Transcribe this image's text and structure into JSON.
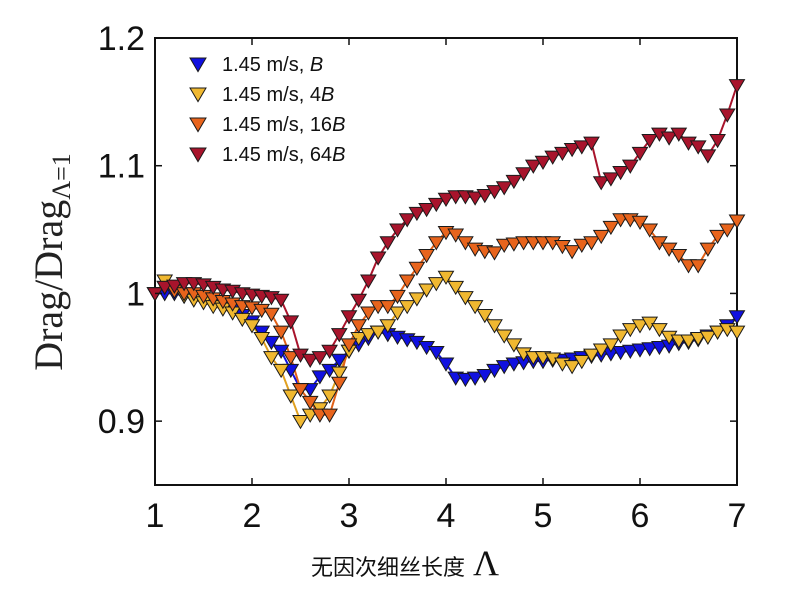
{
  "chart_data": {
    "type": "line",
    "xlabel_text": "无因次细丝长度",
    "xlabel_symbol": "Λ",
    "ylabel_main": "Drag/Drag",
    "ylabel_sub": "Λ=1",
    "xlim": [
      1,
      7
    ],
    "ylim": [
      0.85,
      1.2
    ],
    "x_ticks": [
      "1",
      "2",
      "3",
      "4",
      "5",
      "6",
      "7"
    ],
    "y_ticks": [
      "0.9",
      "1",
      "1.1",
      "1.2"
    ],
    "grid": false,
    "legend_position": "top-left",
    "series": [
      {
        "name": "1.45 m/s, B",
        "name_plain": "1.45 m/s, ",
        "name_italic": "B",
        "color": "#1010e0",
        "line_color": "#1010e0",
        "x": [
          1.0,
          1.1,
          1.2,
          1.3,
          1.4,
          1.5,
          1.6,
          1.7,
          1.8,
          1.9,
          2.0,
          2.1,
          2.2,
          2.3,
          2.4,
          2.5,
          2.6,
          2.7,
          2.8,
          2.9,
          3.0,
          3.1,
          3.2,
          3.3,
          3.4,
          3.5,
          3.6,
          3.7,
          3.8,
          3.9,
          4.0,
          4.1,
          4.2,
          4.3,
          4.4,
          4.5,
          4.6,
          4.7,
          4.8,
          4.9,
          5.0,
          5.1,
          5.2,
          5.3,
          5.4,
          5.5,
          5.6,
          5.7,
          5.8,
          5.9,
          6.0,
          6.1,
          6.2,
          6.3,
          6.4,
          6.5,
          6.6,
          6.7,
          6.8,
          6.9,
          7.0
        ],
        "values": [
          1.0,
          1.0,
          1.0,
          0.998,
          0.996,
          0.994,
          0.992,
          0.99,
          0.987,
          0.983,
          0.978,
          0.97,
          0.962,
          0.955,
          0.94,
          0.925,
          0.925,
          0.935,
          0.94,
          0.948,
          0.955,
          0.96,
          0.965,
          0.97,
          0.968,
          0.966,
          0.964,
          0.962,
          0.958,
          0.954,
          0.945,
          0.934,
          0.933,
          0.934,
          0.936,
          0.94,
          0.943,
          0.945,
          0.946,
          0.947,
          0.947,
          0.948,
          0.948,
          0.949,
          0.95,
          0.951,
          0.952,
          0.953,
          0.954,
          0.955,
          0.956,
          0.957,
          0.958,
          0.959,
          0.961,
          0.962,
          0.964,
          0.967,
          0.97,
          0.975,
          0.982
        ]
      },
      {
        "name": "1.45 m/s, 4B",
        "name_plain": "1.45 m/s, 4",
        "name_italic": "B",
        "color": "#f0b830",
        "line_color": "#e0a020",
        "x": [
          1.0,
          1.1,
          1.2,
          1.3,
          1.4,
          1.5,
          1.6,
          1.7,
          1.8,
          1.9,
          2.0,
          2.1,
          2.2,
          2.3,
          2.4,
          2.5,
          2.6,
          2.7,
          2.8,
          2.9,
          3.0,
          3.1,
          3.2,
          3.3,
          3.4,
          3.5,
          3.6,
          3.7,
          3.8,
          3.9,
          4.0,
          4.1,
          4.2,
          4.3,
          4.4,
          4.5,
          4.6,
          4.7,
          4.8,
          4.9,
          5.0,
          5.1,
          5.2,
          5.3,
          5.4,
          5.5,
          5.6,
          5.7,
          5.8,
          5.9,
          6.0,
          6.1,
          6.2,
          6.3,
          6.4,
          6.5,
          6.6,
          6.7,
          6.8,
          6.9,
          7.0
        ],
        "values": [
          1.0,
          1.01,
          1.005,
          0.998,
          0.995,
          0.993,
          0.99,
          0.988,
          0.985,
          0.98,
          0.975,
          0.965,
          0.95,
          0.94,
          0.92,
          0.9,
          0.905,
          0.91,
          0.92,
          0.938,
          0.955,
          0.965,
          0.968,
          0.97,
          0.975,
          0.985,
          0.99,
          0.996,
          1.003,
          1.008,
          1.013,
          1.005,
          0.997,
          0.99,
          0.983,
          0.975,
          0.967,
          0.96,
          0.953,
          0.95,
          0.95,
          0.949,
          0.945,
          0.943,
          0.947,
          0.952,
          0.956,
          0.96,
          0.967,
          0.972,
          0.975,
          0.977,
          0.972,
          0.966,
          0.963,
          0.963,
          0.965,
          0.966,
          0.97,
          0.972,
          0.97
        ]
      },
      {
        "name": "1.45 m/s, 16B",
        "name_plain": "1.45 m/s, 16",
        "name_italic": "B",
        "color": "#e8641c",
        "line_color": "#e06018",
        "x": [
          1.0,
          1.1,
          1.2,
          1.3,
          1.4,
          1.5,
          1.6,
          1.7,
          1.8,
          1.9,
          2.0,
          2.1,
          2.2,
          2.3,
          2.4,
          2.5,
          2.6,
          2.7,
          2.8,
          2.9,
          3.0,
          3.1,
          3.2,
          3.3,
          3.4,
          3.5,
          3.6,
          3.7,
          3.8,
          3.9,
          4.0,
          4.1,
          4.2,
          4.3,
          4.4,
          4.5,
          4.6,
          4.7,
          4.8,
          4.9,
          5.0,
          5.1,
          5.2,
          5.3,
          5.4,
          5.5,
          5.6,
          5.7,
          5.8,
          5.9,
          6.0,
          6.1,
          6.2,
          6.3,
          6.4,
          6.5,
          6.6,
          6.7,
          6.8,
          6.9,
          7.0
        ],
        "values": [
          1.0,
          1.005,
          1.002,
          1.0,
          1.0,
          0.998,
          0.996,
          0.994,
          0.992,
          0.99,
          0.989,
          0.987,
          0.984,
          0.97,
          0.95,
          0.925,
          0.915,
          0.905,
          0.905,
          0.93,
          0.96,
          0.975,
          0.985,
          0.99,
          0.99,
          0.998,
          1.01,
          1.02,
          1.03,
          1.04,
          1.048,
          1.046,
          1.04,
          1.035,
          1.033,
          1.032,
          1.038,
          1.039,
          1.04,
          1.04,
          1.04,
          1.04,
          1.037,
          1.033,
          1.038,
          1.04,
          1.045,
          1.052,
          1.058,
          1.058,
          1.056,
          1.05,
          1.04,
          1.035,
          1.03,
          1.022,
          1.022,
          1.035,
          1.045,
          1.05,
          1.057
        ]
      },
      {
        "name": "1.45 m/s, 64B",
        "name_plain": "1.45 m/s, 64",
        "name_italic": "B",
        "color": "#a8142c",
        "line_color": "#a8142c",
        "x": [
          1.0,
          1.1,
          1.2,
          1.3,
          1.4,
          1.5,
          1.6,
          1.7,
          1.8,
          1.9,
          2.0,
          2.1,
          2.2,
          2.3,
          2.4,
          2.5,
          2.6,
          2.7,
          2.8,
          2.9,
          3.0,
          3.1,
          3.2,
          3.3,
          3.4,
          3.5,
          3.6,
          3.7,
          3.8,
          3.9,
          4.0,
          4.1,
          4.2,
          4.3,
          4.4,
          4.5,
          4.6,
          4.7,
          4.8,
          4.9,
          5.0,
          5.1,
          5.2,
          5.3,
          5.4,
          5.5,
          5.6,
          5.7,
          5.8,
          5.9,
          6.0,
          6.1,
          6.2,
          6.3,
          6.4,
          6.5,
          6.6,
          6.7,
          6.8,
          6.9,
          7.0
        ],
        "values": [
          1.0,
          1.005,
          1.006,
          1.008,
          1.008,
          1.007,
          1.005,
          1.003,
          1.002,
          1.0,
          0.999,
          0.998,
          0.997,
          0.995,
          0.978,
          0.952,
          0.948,
          0.95,
          0.955,
          0.968,
          0.982,
          0.995,
          1.01,
          1.028,
          1.04,
          1.05,
          1.058,
          1.063,
          1.066,
          1.07,
          1.074,
          1.076,
          1.076,
          1.075,
          1.077,
          1.08,
          1.083,
          1.088,
          1.094,
          1.1,
          1.103,
          1.107,
          1.11,
          1.113,
          1.115,
          1.118,
          1.087,
          1.09,
          1.095,
          1.1,
          1.11,
          1.12,
          1.125,
          1.122,
          1.125,
          1.118,
          1.115,
          1.108,
          1.12,
          1.14,
          1.163
        ]
      }
    ]
  }
}
